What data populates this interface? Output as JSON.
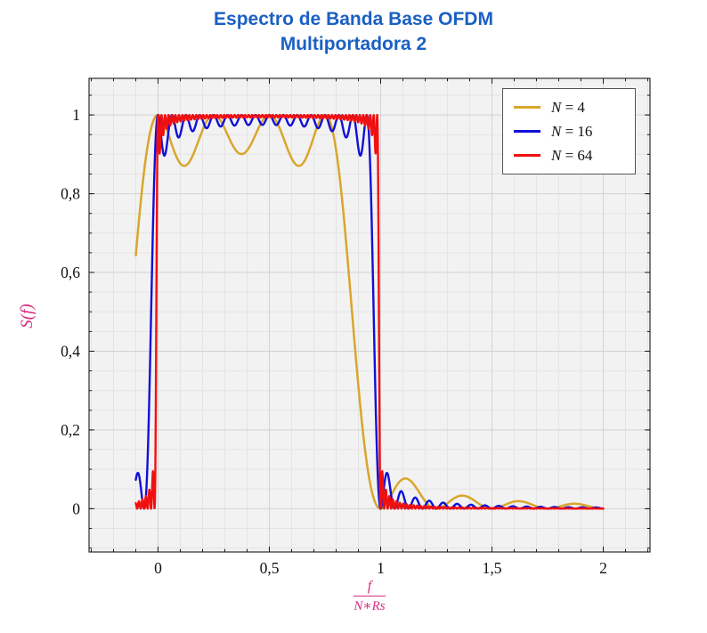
{
  "title": {
    "line1": "Espectro de Banda Base OFDM",
    "line2": "Multiportadora 2",
    "color": "#1a60c3"
  },
  "chart_data": {
    "type": "line",
    "title": "Espectro de Banda Base OFDM — Multiportadora 2",
    "ylabel": "S(f)",
    "xlabel_numerator": "f",
    "xlabel_denominator": "N∗Rs",
    "label_color": "#d62a7e",
    "xlim": [
      -0.31,
      2.21
    ],
    "ylim": [
      -0.11,
      1.093
    ],
    "x_ticks": [
      {
        "v": 0,
        "label": "0"
      },
      {
        "v": 0.5,
        "label": "0,5"
      },
      {
        "v": 1,
        "label": "1"
      },
      {
        "v": 1.5,
        "label": "1,5"
      },
      {
        "v": 2,
        "label": "2"
      }
    ],
    "y_ticks": [
      {
        "v": 0,
        "label": "0"
      },
      {
        "v": 0.2,
        "label": "0,2"
      },
      {
        "v": 0.4,
        "label": "0,4"
      },
      {
        "v": 0.6,
        "label": "0,6"
      },
      {
        "v": 0.8,
        "label": "0,8"
      },
      {
        "v": 1,
        "label": "1"
      }
    ],
    "minor_x_step": 0.1,
    "minor_y_step": 0.05,
    "grid": true,
    "plot_bg": "#f2f2f2",
    "minor_grid_color": "#e4e4e4",
    "major_grid_color": "#d2d2d2",
    "frame_color": "#1a1a1a",
    "legend_position": "top-right",
    "generator": {
      "name": "ofdm_spectrum",
      "formula": "S(x) = sum_{k=0}^{N-1} sinc^2(N*x - k),  sinc(u) = sin(pi*u)/(pi*u),  x = f/(N*Rs)",
      "x_start": -0.1,
      "x_end": 2.0,
      "samples": 2200
    },
    "series": [
      {
        "name": "N = 4",
        "N": 4,
        "color": "#D9A62B",
        "width": 2.5
      },
      {
        "name": "N = 16",
        "N": 16,
        "color": "#1010D8",
        "width": 2.4
      },
      {
        "name": "N = 64",
        "N": 64,
        "color": "#F01010",
        "width": 2.4
      }
    ]
  }
}
